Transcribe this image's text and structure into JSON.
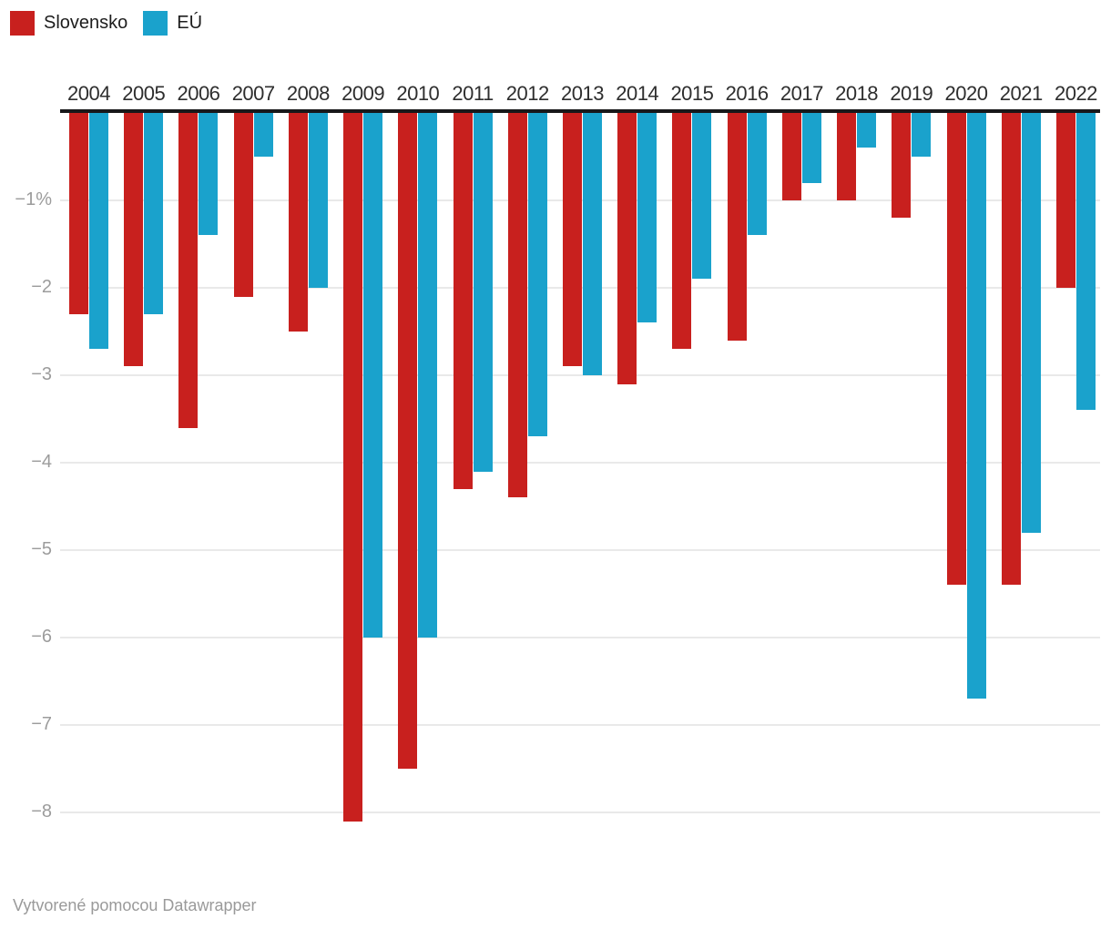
{
  "legend": {
    "items": [
      {
        "label": "Slovensko",
        "color": "#c8201e"
      },
      {
        "label": "EÚ",
        "color": "#1aa2cc"
      }
    ]
  },
  "footer": {
    "text": "Vytvorené pomocou Datawrapper"
  },
  "chart_data": {
    "type": "bar",
    "orientation": "vertical",
    "title": "",
    "xlabel": "",
    "ylabel": "",
    "categories": [
      "2004",
      "2005",
      "2006",
      "2007",
      "2008",
      "2009",
      "2010",
      "2011",
      "2012",
      "2013",
      "2014",
      "2015",
      "2016",
      "2017",
      "2018",
      "2019",
      "2020",
      "2021",
      "2022"
    ],
    "series": [
      {
        "name": "Slovensko",
        "color": "#c8201e",
        "values": [
          -2.3,
          -2.9,
          -3.6,
          -2.1,
          -2.5,
          -8.1,
          -7.5,
          -4.3,
          -4.4,
          -2.9,
          -3.1,
          -2.7,
          -2.6,
          -1.0,
          -1.0,
          -1.2,
          -5.4,
          -5.4,
          -2.0
        ]
      },
      {
        "name": "EÚ",
        "color": "#1aa2cc",
        "values": [
          -2.7,
          -2.3,
          -1.4,
          -0.5,
          -2.0,
          -6.0,
          -6.0,
          -4.1,
          -3.7,
          -3.0,
          -2.4,
          -1.9,
          -1.4,
          -0.8,
          -0.4,
          -0.5,
          -6.7,
          -4.8,
          -3.4
        ]
      }
    ],
    "y_axis": {
      "ticks": [
        -1,
        -2,
        -3,
        -4,
        -5,
        -6,
        -7,
        -8
      ],
      "tick_labels": [
        "−1%",
        "−2",
        "−3",
        "−4",
        "−5",
        "−6",
        "−7",
        "−8"
      ],
      "ylim": [
        0,
        -8.6
      ],
      "grid": true,
      "unit": "%"
    },
    "x_axis_position": "top",
    "legend_position": "top-left"
  }
}
